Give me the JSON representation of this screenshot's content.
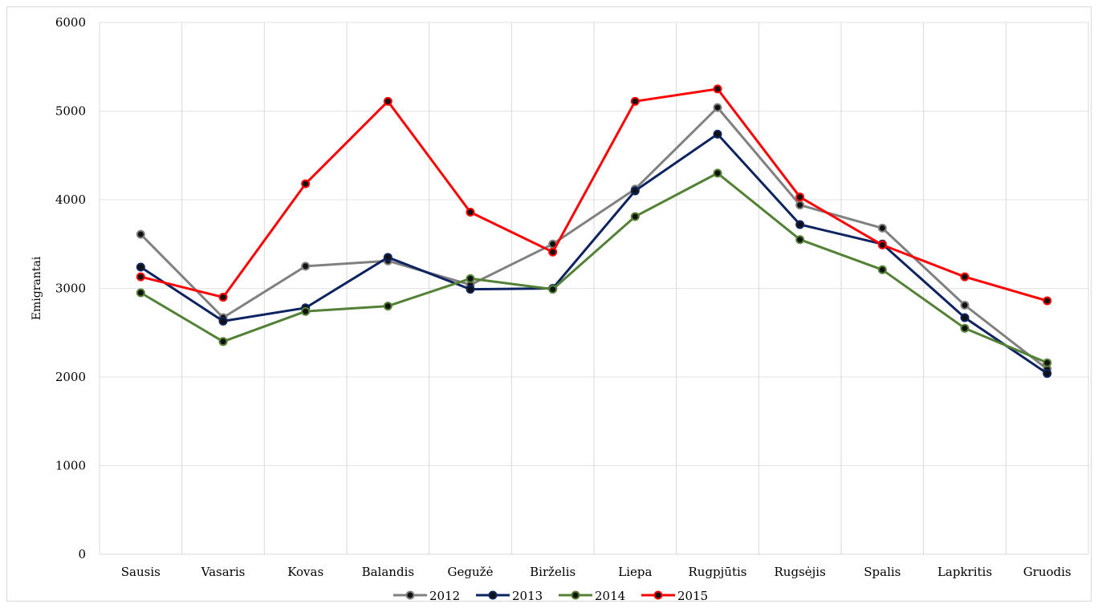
{
  "chart_data": {
    "type": "line",
    "title": "",
    "xlabel": "",
    "ylabel": "Emigrantai",
    "ylim": [
      0,
      6000
    ],
    "yticks": [
      "0",
      "1000",
      "2000",
      "3000",
      "4000",
      "5000",
      "6000"
    ],
    "grid": "vertical",
    "legend_position": "bottom",
    "categories": [
      "Sausis",
      "Vasaris",
      "Kovas",
      "Balandis",
      "Gegužė",
      "Birželis",
      "Liepa",
      "Rugpjūtis",
      "Rugsėjis",
      "Spalis",
      "Lapkritis",
      "Gruodis"
    ],
    "series": [
      {
        "name": "2012",
        "color": "#808080",
        "values": [
          3610,
          2670,
          3250,
          3310,
          3040,
          3500,
          4120,
          5040,
          3940,
          3680,
          2810,
          2090
        ]
      },
      {
        "name": "2013",
        "color": "#0d2461",
        "values": [
          3240,
          2630,
          2780,
          3350,
          2990,
          3000,
          4100,
          4740,
          3720,
          3500,
          2670,
          2040
        ]
      },
      {
        "name": "2014",
        "color": "#538135",
        "values": [
          2950,
          2400,
          2740,
          2800,
          3110,
          2990,
          3810,
          4300,
          3550,
          3210,
          2550,
          2160
        ]
      },
      {
        "name": "2015",
        "color": "#ff0000",
        "values": [
          3130,
          2900,
          4180,
          5110,
          3860,
          3410,
          5110,
          5250,
          4030,
          3490,
          3130,
          2860
        ]
      }
    ]
  }
}
